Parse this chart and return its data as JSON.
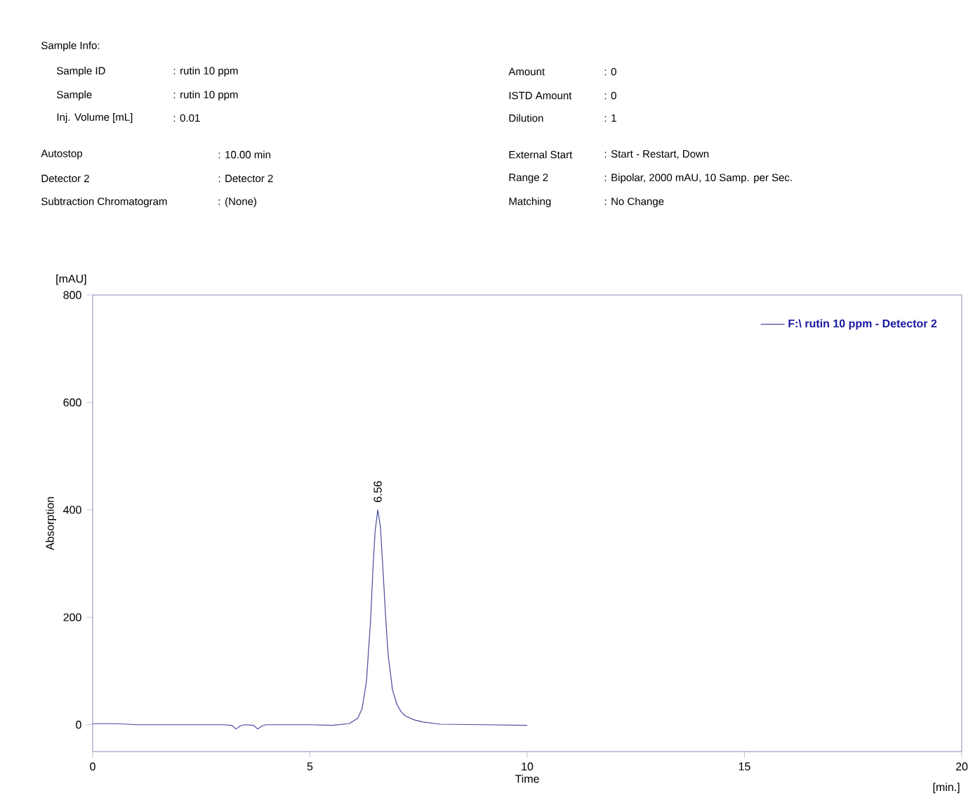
{
  "chart_data": {
    "type": "line",
    "xlabel": "Time",
    "ylabel": "Absorption",
    "xlim": [
      0,
      20
    ],
    "ylim": [
      -50,
      800
    ],
    "xticks": [
      0,
      5,
      10,
      15,
      20
    ],
    "yticks": [
      0,
      200,
      400,
      600,
      800
    ],
    "legend": "top right",
    "series": [
      {
        "name": "F:\\ rutin 10 ppm - Detector 2",
        "color": "#4a4a9c",
        "x": [
          0,
          0.5,
          0.8,
          1.0,
          2.0,
          3.0,
          3.2,
          3.3,
          3.4,
          3.5,
          3.7,
          3.8,
          3.9,
          4.0,
          4.5,
          5.0,
          5.5,
          5.9,
          6.1,
          6.2,
          6.3,
          6.4,
          6.45,
          6.5,
          6.56,
          6.62,
          6.68,
          6.75,
          6.8,
          6.9,
          7.0,
          7.1,
          7.2,
          7.4,
          7.6,
          8.0,
          9.0,
          10.0
        ],
        "values": [
          2,
          2,
          1,
          0,
          0,
          0,
          -1,
          -8,
          -2,
          0,
          -1,
          -8,
          -2,
          0,
          0,
          0,
          -1,
          2,
          12,
          30,
          80,
          200,
          290,
          360,
          400,
          370,
          290,
          190,
          130,
          65,
          38,
          24,
          16,
          9,
          5,
          1,
          0,
          -1
        ]
      }
    ],
    "annotations": [
      "Sample Info:",
      "Sample ID",
      ": rutin 10 ppm",
      "Sample",
      ": rutin 10 ppm",
      "Inj. Volume [mL]",
      ": 0.01",
      "Amount",
      ": 0",
      "ISTD Amount",
      ": 0",
      "Dilution",
      ": 1",
      "Autostop",
      ": 10.00 min",
      "Detector 2",
      ": Detector 2",
      "Subtraction Chromatogram",
      ": (None)",
      "External Start",
      ": Start - Restart, Down",
      "Range 2",
      ": Bipolar, 2000 mAU, 10 Samp. per Sec.",
      "Matching",
      ": No Change",
      "[mAU]",
      "[min.]",
      {
        "text": "6.56",
        "x": 6.56,
        "y": 400
      }
    ]
  }
}
